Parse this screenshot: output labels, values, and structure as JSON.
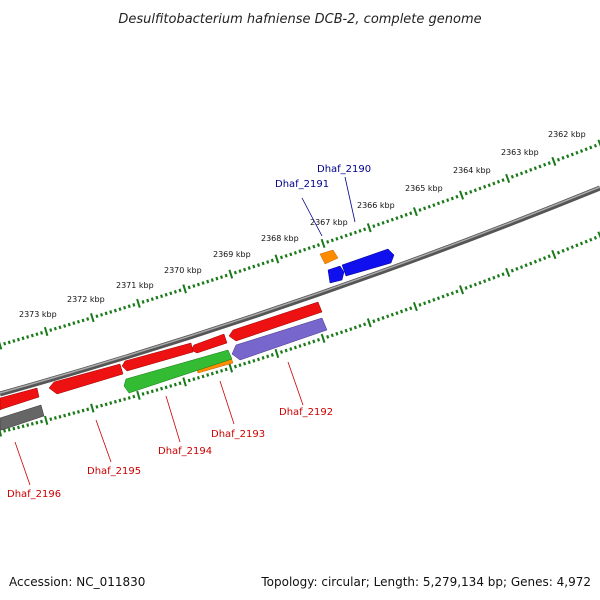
{
  "title": "Desulfitobacterium hafniense DCB-2, complete genome",
  "footer": {
    "accession": "Accession: NC_011830",
    "topology": "Topology: circular; Length: 5,279,134 bp; Genes: 4,972"
  },
  "colors": {
    "tick": "#1a7a1a",
    "backbone": "#777777",
    "forward_label": "#00008b",
    "reverse_label": "#cc0000",
    "red_gene": "#ee1111",
    "blue_gene": "#1010ee",
    "orange_gene": "#ff8c00",
    "green_gene": "#33bb33",
    "purple_gene": "#7766cc",
    "gray_gene": "#666666"
  },
  "kbp_labels": [
    "2362 kbp",
    "2363 kbp",
    "2364 kbp",
    "2365 kbp",
    "2366 kbp",
    "2367 kbp",
    "2368 kbp",
    "2369 kbp",
    "2370 kbp",
    "2371 kbp",
    "2372 kbp",
    "2373 kbp"
  ],
  "gene_labels": {
    "dhaf_2190": "Dhaf_2190",
    "dhaf_2191": "Dhaf_2191",
    "dhaf_2192": "Dhaf_2192",
    "dhaf_2193": "Dhaf_2193",
    "dhaf_2194": "Dhaf_2194",
    "dhaf_2195": "Dhaf_2195",
    "dhaf_2196": "Dhaf_2196"
  }
}
